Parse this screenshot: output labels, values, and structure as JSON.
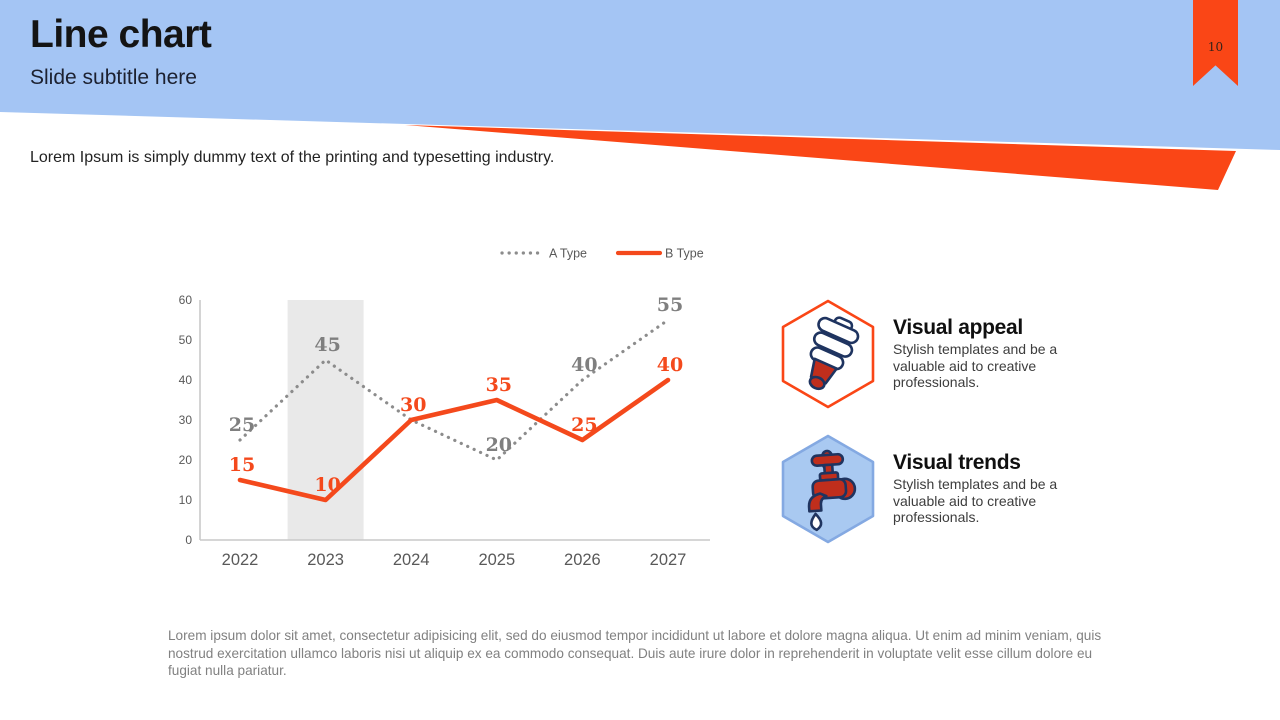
{
  "slide": {
    "title": "Line chart",
    "subtitle": "Slide subtitle here",
    "page_number": "10",
    "intro_text": "Lorem Ipsum is simply dummy text of the printing and typesetting industry.",
    "footer_text": "Lorem ipsum dolor sit amet, consectetur adipisicing elit, sed do eiusmod tempor incididunt ut labore et dolore magna aliqua. Ut enim ad minim veniam, quis nostrud exercitation ullamco laboris nisi ut aliquip ex ea commodo consequat. Duis aute irure dolor in reprehenderit in voluptate velit esse cillum dolore eu fugiat nulla pariatur."
  },
  "colors": {
    "header_blue": "#A4C5F4",
    "accent_orange": "#FA4616",
    "series_a_gray": "#8C8C8C",
    "series_b_orange": "#F4491C",
    "band_gray": "#E9E9E9",
    "axis_gray": "#C9C9C9",
    "label_gray": "#595959",
    "data_label_gray": "#7F7F7F",
    "text_dark": "#141414",
    "icon_red": "#C02E1C",
    "icon_navy": "#1F3460",
    "hex2_fill": "#A9C9F1",
    "hex2_border": "#84A9E2"
  },
  "chart_data": {
    "type": "line",
    "categories": [
      "2022",
      "2023",
      "2024",
      "2025",
      "2026",
      "2027"
    ],
    "series": [
      {
        "name": "A Type",
        "style": "dotted",
        "color": "#8C8C8C",
        "values": [
          25,
          45,
          30,
          20,
          40,
          55
        ],
        "labels": [
          "25",
          "45",
          "",
          "20",
          "40",
          "55"
        ]
      },
      {
        "name": "B Type",
        "style": "solid",
        "color": "#F4491C",
        "values": [
          15,
          10,
          30,
          35,
          25,
          40
        ],
        "labels": [
          "15",
          "10",
          "30",
          "35",
          "25",
          "40"
        ]
      }
    ],
    "title": "",
    "xlabel": "",
    "ylabel": "",
    "ylim": [
      0,
      60
    ],
    "ytick_step": 10,
    "highlight_category": "2023",
    "legend_position": "top",
    "grid": false
  },
  "features": [
    {
      "title": "Visual appeal",
      "description": "Stylish templates and be a valuable aid to creative professionals.",
      "icon": "cfl-bulb-icon"
    },
    {
      "title": "Visual trends",
      "description": "Stylish templates and be a valuable aid to creative professionals.",
      "icon": "faucet-icon"
    }
  ]
}
